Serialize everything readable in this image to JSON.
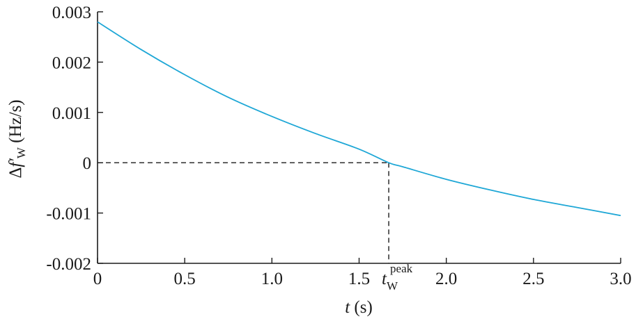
{
  "chart_data": {
    "type": "line",
    "title": "",
    "xlabel": {
      "var": "t",
      "unit": " (s)"
    },
    "ylabel": {
      "prefix": "Δ",
      "var": "f′",
      "sub": "W",
      "unit": " (Hz/s)"
    },
    "xlim": [
      0,
      3.0
    ],
    "ylim": [
      -0.002,
      0.003
    ],
    "xticks": [
      {
        "value": 0,
        "label": "0"
      },
      {
        "value": 0.5,
        "label": "0.5"
      },
      {
        "value": 1.0,
        "label": "1.0"
      },
      {
        "value": 1.5,
        "label": "1.5"
      },
      {
        "value": 2.0,
        "label": "2.0"
      },
      {
        "value": 2.5,
        "label": "2.5"
      },
      {
        "value": 3.0,
        "label": "3.0"
      }
    ],
    "yticks": [
      {
        "value": -0.002,
        "label": "-0.002"
      },
      {
        "value": -0.001,
        "label": "-0.001"
      },
      {
        "value": 0,
        "label": "0"
      },
      {
        "value": 0.001,
        "label": "0.001"
      },
      {
        "value": 0.002,
        "label": "0.002"
      },
      {
        "value": 0.003,
        "label": "0.003"
      }
    ],
    "series": [
      {
        "color": "#1ea7d6",
        "x": [
          0,
          0.25,
          0.5,
          0.75,
          1.0,
          1.25,
          1.5,
          1.67,
          1.75,
          2.0,
          2.25,
          2.5,
          2.75,
          3.0
        ],
        "y": [
          0.0028,
          0.00225,
          0.00175,
          0.0013,
          0.00092,
          0.00058,
          0.00027,
          0.0,
          -8e-05,
          -0.00033,
          -0.00054,
          -0.00073,
          -0.00089,
          -0.00105
        ]
      }
    ],
    "annotation": {
      "x": 1.67,
      "y": 0,
      "label_main": "t",
      "label_sub": "W",
      "label_sup": "peak"
    },
    "grid": false,
    "legend": "none"
  }
}
